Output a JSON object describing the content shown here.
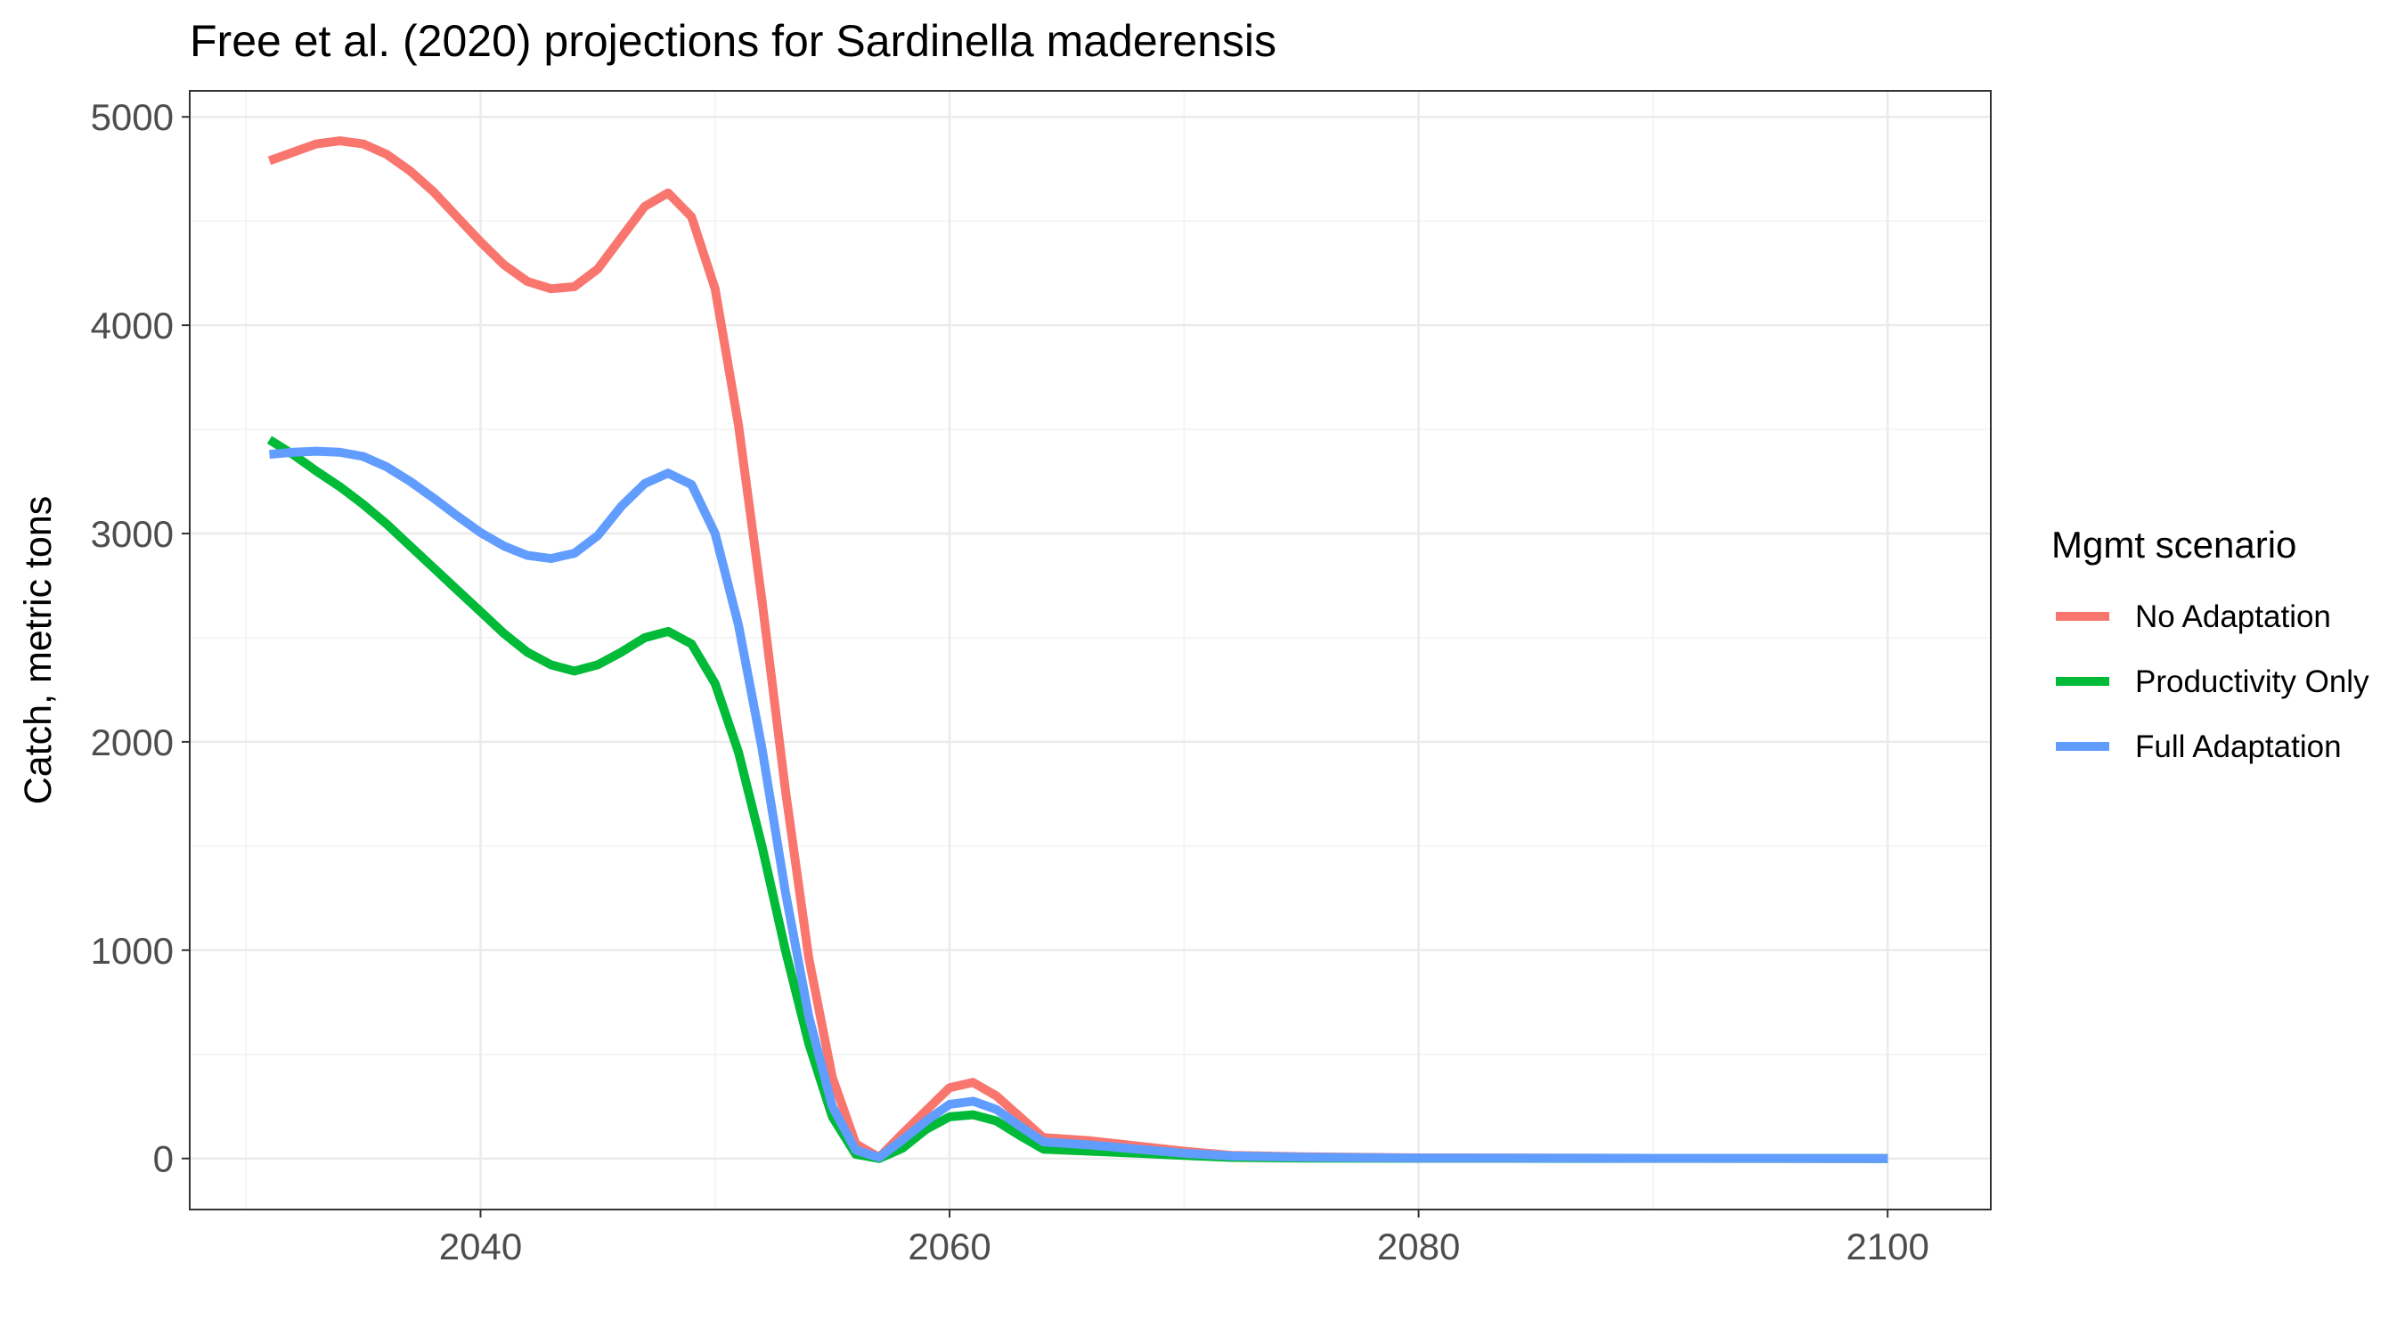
{
  "chart_data": {
    "type": "line",
    "title": "Free et al. (2020) projections for Sardinella maderensis",
    "xlabel": "",
    "ylabel": "Catch, metric tons",
    "xlim": [
      2027.6,
      2104.4
    ],
    "ylim": [
      -245,
      5125
    ],
    "x_ticks": [
      2040,
      2060,
      2080,
      2100
    ],
    "y_ticks": [
      0,
      1000,
      2000,
      3000,
      4000,
      5000
    ],
    "grid": true,
    "legend": {
      "title": "Mgmt scenario",
      "position": "right"
    },
    "series": [
      {
        "name": "No Adaptation",
        "color": "#F8766D",
        "points": [
          [
            2031,
            4790
          ],
          [
            2032,
            4830
          ],
          [
            2033,
            4870
          ],
          [
            2034,
            4885
          ],
          [
            2035,
            4870
          ],
          [
            2036,
            4820
          ],
          [
            2037,
            4740
          ],
          [
            2038,
            4640
          ],
          [
            2039,
            4520
          ],
          [
            2040,
            4400
          ],
          [
            2041,
            4290
          ],
          [
            2042,
            4210
          ],
          [
            2043,
            4175
          ],
          [
            2044,
            4185
          ],
          [
            2045,
            4270
          ],
          [
            2046,
            4420
          ],
          [
            2047,
            4570
          ],
          [
            2048,
            4635
          ],
          [
            2049,
            4520
          ],
          [
            2050,
            4175
          ],
          [
            2051,
            3520
          ],
          [
            2052,
            2680
          ],
          [
            2053,
            1770
          ],
          [
            2054,
            960
          ],
          [
            2055,
            390
          ],
          [
            2056,
            70
          ],
          [
            2057,
            5
          ],
          [
            2058,
            120
          ],
          [
            2059,
            230
          ],
          [
            2060,
            340
          ],
          [
            2061,
            365
          ],
          [
            2062,
            300
          ],
          [
            2063,
            200
          ],
          [
            2064,
            100
          ],
          [
            2066,
            85
          ],
          [
            2068,
            60
          ],
          [
            2070,
            35
          ],
          [
            2072,
            15
          ],
          [
            2075,
            8
          ],
          [
            2080,
            3
          ],
          [
            2090,
            1
          ],
          [
            2100,
            0
          ]
        ]
      },
      {
        "name": "Productivity Only",
        "color": "#00BA38",
        "points": [
          [
            2031,
            3450
          ],
          [
            2032,
            3380
          ],
          [
            2033,
            3300
          ],
          [
            2034,
            3225
          ],
          [
            2035,
            3140
          ],
          [
            2036,
            3045
          ],
          [
            2037,
            2940
          ],
          [
            2038,
            2835
          ],
          [
            2039,
            2730
          ],
          [
            2040,
            2625
          ],
          [
            2041,
            2520
          ],
          [
            2042,
            2430
          ],
          [
            2043,
            2370
          ],
          [
            2044,
            2340
          ],
          [
            2045,
            2370
          ],
          [
            2046,
            2430
          ],
          [
            2047,
            2500
          ],
          [
            2048,
            2530
          ],
          [
            2049,
            2470
          ],
          [
            2050,
            2280
          ],
          [
            2051,
            1950
          ],
          [
            2052,
            1500
          ],
          [
            2053,
            1000
          ],
          [
            2054,
            550
          ],
          [
            2055,
            200
          ],
          [
            2056,
            20
          ],
          [
            2057,
            0
          ],
          [
            2058,
            50
          ],
          [
            2059,
            140
          ],
          [
            2060,
            200
          ],
          [
            2061,
            210
          ],
          [
            2062,
            180
          ],
          [
            2063,
            110
          ],
          [
            2064,
            45
          ],
          [
            2066,
            35
          ],
          [
            2068,
            25
          ],
          [
            2070,
            15
          ],
          [
            2072,
            5
          ],
          [
            2075,
            2
          ],
          [
            2080,
            1
          ],
          [
            2100,
            0
          ]
        ]
      },
      {
        "name": "Full Adaptation",
        "color": "#619CFF",
        "points": [
          [
            2031,
            3380
          ],
          [
            2032,
            3390
          ],
          [
            2033,
            3395
          ],
          [
            2034,
            3390
          ],
          [
            2035,
            3370
          ],
          [
            2036,
            3320
          ],
          [
            2037,
            3250
          ],
          [
            2038,
            3170
          ],
          [
            2039,
            3085
          ],
          [
            2040,
            3005
          ],
          [
            2041,
            2940
          ],
          [
            2042,
            2895
          ],
          [
            2043,
            2880
          ],
          [
            2044,
            2905
          ],
          [
            2045,
            2990
          ],
          [
            2046,
            3130
          ],
          [
            2047,
            3240
          ],
          [
            2048,
            3290
          ],
          [
            2049,
            3235
          ],
          [
            2050,
            3000
          ],
          [
            2051,
            2560
          ],
          [
            2052,
            1970
          ],
          [
            2053,
            1280
          ],
          [
            2054,
            680
          ],
          [
            2055,
            250
          ],
          [
            2056,
            40
          ],
          [
            2057,
            5
          ],
          [
            2058,
            90
          ],
          [
            2059,
            180
          ],
          [
            2060,
            260
          ],
          [
            2061,
            275
          ],
          [
            2062,
            235
          ],
          [
            2063,
            155
          ],
          [
            2064,
            80
          ],
          [
            2066,
            65
          ],
          [
            2068,
            45
          ],
          [
            2070,
            25
          ],
          [
            2072,
            12
          ],
          [
            2075,
            6
          ],
          [
            2080,
            2
          ],
          [
            2090,
            1
          ],
          [
            2100,
            0
          ]
        ]
      }
    ]
  }
}
